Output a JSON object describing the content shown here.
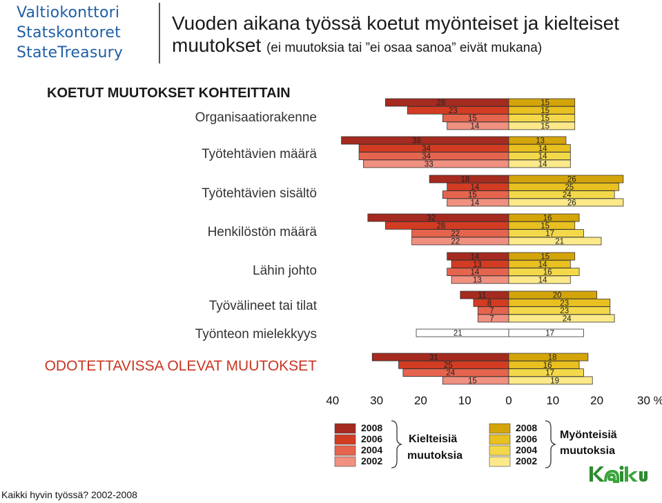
{
  "logo": {
    "line1": "Valtiokonttori",
    "line2": "Statskontoret",
    "line3": "StateTreasury"
  },
  "title": {
    "main": "Vuoden aikana työssä koetut myönteiset ja kielteiset",
    "main2": "muutokset",
    "note": "(ei muutoksia tai ”ei osaa sanoa” eivät mukana)"
  },
  "sections": {
    "experienced": "KOETUT MUUTOKSET KOHTEITTAIN",
    "expected": "ODOTETTAVISSA OLEVAT MUUTOKSET"
  },
  "colors": {
    "negative": [
      "#a52a1f",
      "#d23c22",
      "#e5644e",
      "#f09080"
    ],
    "positive": [
      "#d4a50b",
      "#e8c020",
      "#f3d84a",
      "#fbe98a"
    ]
  },
  "chart_data": {
    "type": "bar",
    "orientation": "horizontal-diverging",
    "categories": [
      "Organisaatiorakenne",
      "Työtehtävien määrä",
      "Työtehtävien sisältö",
      "Henkilöstön määrä",
      "Lähin johto",
      "Työvälineet tai  tilat",
      "Työnteon mielekkyys",
      "ODOTETTAVISSA OLEVAT MUUTOKSET"
    ],
    "years": [
      "2008",
      "2006",
      "2004",
      "2002"
    ],
    "negative_name": "Kielteisiä muutoksia",
    "positive_name": "Myönteisiä muutoksia",
    "series": [
      {
        "category": "Organisaatiorakenne",
        "negative": [
          28,
          23,
          15,
          14
        ],
        "positive": [
          15,
          15,
          15,
          15
        ]
      },
      {
        "category": "Työtehtävien määrä",
        "negative": [
          38,
          34,
          34,
          33
        ],
        "positive": [
          13,
          14,
          14,
          14
        ]
      },
      {
        "category": "Työtehtävien sisältö",
        "negative": [
          18,
          14,
          15,
          14
        ],
        "positive": [
          26,
          25,
          24,
          26
        ]
      },
      {
        "category": "Henkilöstön määrä",
        "negative": [
          32,
          28,
          22,
          22
        ],
        "positive": [
          16,
          15,
          17,
          21
        ]
      },
      {
        "category": "Lähin johto",
        "negative": [
          14,
          13,
          14,
          13
        ],
        "positive": [
          15,
          14,
          16,
          14
        ]
      },
      {
        "category": "Työvälineet tai  tilat",
        "negative": [
          11,
          8,
          7,
          7
        ],
        "positive": [
          20,
          23,
          23,
          24
        ]
      },
      {
        "category": "Työnteon mielekkyys",
        "negative": [
          21
        ],
        "positive": [
          17
        ]
      },
      {
        "category": "ODOTETTAVISSA OLEVAT MUUTOKSET",
        "negative": [
          31,
          25,
          24,
          15
        ],
        "positive": [
          18,
          16,
          17,
          19
        ]
      }
    ],
    "x_ticks": [
      "40",
      "30",
      "20",
      "10",
      "0",
      "10",
      "20",
      "30 %"
    ],
    "xlim": [
      -40,
      30
    ]
  },
  "legend": {
    "years": [
      "2008",
      "2006",
      "2004",
      "2002"
    ],
    "negative_label1": "Kielteisiä",
    "negative_label2": "muutoksia",
    "positive_label1": "Myönteisiä",
    "positive_label2": "muutoksia"
  },
  "footer": "Kaikki hyvin työssä? 2002-2008",
  "brand": "kaiku"
}
